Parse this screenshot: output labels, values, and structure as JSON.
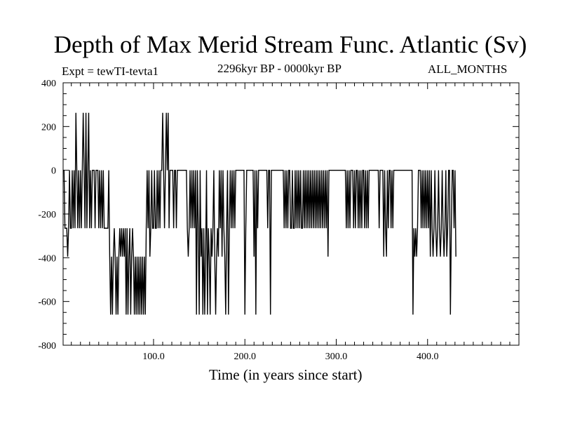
{
  "chart_data": {
    "type": "line",
    "title": "Depth of Max Merid Stream Func. Atlantic (Sv)",
    "subtitle_left": "Expt = tewTI-tevta1",
    "subtitle_center": "2296kyr BP - 0000kyr BP",
    "subtitle_right": "ALL_MONTHS",
    "xlabel": "Time (in years since start)",
    "ylabel": "",
    "xlim": [
      1,
      500
    ],
    "ylim": [
      -800,
      400
    ],
    "xticks": [
      {
        "value": 100,
        "label": "100.0"
      },
      {
        "value": 200,
        "label": "200.0"
      },
      {
        "value": 300,
        "label": "300.0"
      },
      {
        "value": 400,
        "label": "400.0"
      }
    ],
    "yticks": [
      {
        "value": 400,
        "label": "400"
      },
      {
        "value": 200,
        "label": "200"
      },
      {
        "value": 0,
        "label": "0"
      },
      {
        "value": -200,
        "label": "-200"
      },
      {
        "value": -400,
        "label": "-400"
      },
      {
        "value": -600,
        "label": "-600"
      },
      {
        "value": -800,
        "label": "-800"
      }
    ],
    "series": [
      {
        "name": "depth_of_max_streamfunction",
        "x_start": 1,
        "x_step": 1,
        "values": [
          0,
          0,
          -265,
          -265,
          -265,
          -395,
          -265,
          0,
          -265,
          -265,
          0,
          -265,
          0,
          -265,
          263,
          0,
          -265,
          0,
          -265,
          0,
          -265,
          0,
          263,
          0,
          -265,
          263,
          -265,
          0,
          263,
          -265,
          0,
          -265,
          0,
          0,
          0,
          -265,
          0,
          0,
          0,
          -265,
          0,
          -265,
          0,
          -265,
          0,
          -265,
          -265,
          -265,
          -265,
          -265,
          0,
          -395,
          -660,
          -395,
          -660,
          -395,
          -265,
          -395,
          -660,
          -395,
          -660,
          -395,
          -265,
          -395,
          -265,
          -395,
          -265,
          -395,
          -265,
          -660,
          -265,
          -660,
          -395,
          -265,
          -660,
          -395,
          -265,
          -395,
          -660,
          -395,
          -660,
          -395,
          -660,
          -395,
          -660,
          -395,
          -660,
          -395,
          -660,
          -395,
          -660,
          -265,
          0,
          -265,
          0,
          -395,
          -265,
          0,
          -265,
          -265,
          0,
          -265,
          -265,
          0,
          -265,
          0,
          -265,
          0,
          0,
          263,
          0,
          -265,
          0,
          263,
          0,
          263,
          -265,
          0,
          0,
          0,
          0,
          -265,
          0,
          0,
          -265,
          0,
          0,
          0,
          0,
          0,
          0,
          0,
          0,
          0,
          0,
          0,
          -265,
          -395,
          -265,
          0,
          -265,
          0,
          -265,
          0,
          -265,
          0,
          -660,
          0,
          -265,
          -660,
          0,
          -395,
          -265,
          -660,
          -265,
          -660,
          -395,
          0,
          -660,
          -265,
          -395,
          -660,
          -265,
          -395,
          -265,
          0,
          -395,
          -660,
          -395,
          -265,
          -395,
          0,
          -265,
          0,
          -395,
          0,
          -265,
          -395,
          -660,
          -265,
          0,
          -660,
          -265,
          0,
          -265,
          0,
          -265,
          0,
          -265,
          0,
          0,
          0,
          0,
          0,
          0,
          0,
          0,
          0,
          0,
          -660,
          -265,
          0,
          0,
          0,
          0,
          0,
          0,
          0,
          0,
          -395,
          0,
          -660,
          0,
          -265,
          0,
          0,
          0,
          0,
          0,
          0,
          0,
          0,
          0,
          0,
          -265,
          0,
          0,
          -660,
          0,
          0,
          0,
          0,
          0,
          0,
          0,
          0,
          0,
          0,
          0,
          0,
          0,
          0,
          -265,
          0,
          -265,
          0,
          -265,
          0,
          0,
          -265,
          -265,
          0,
          -265,
          -265,
          0,
          -265,
          0,
          -265,
          0,
          -265,
          0,
          -265,
          -265,
          0,
          -265,
          0,
          -265,
          0,
          -265,
          0,
          -265,
          0,
          -265,
          0,
          -265,
          0,
          -265,
          0,
          -265,
          0,
          -265,
          0,
          -265,
          0,
          -265,
          0,
          -265,
          0,
          -265,
          0,
          -395,
          0,
          0,
          0,
          0,
          0,
          0,
          0,
          0,
          0,
          0,
          0,
          0,
          0,
          0,
          0,
          0,
          0,
          0,
          0,
          -265,
          0,
          -265,
          0,
          -265,
          0,
          0,
          0,
          -265,
          0,
          -265,
          0,
          0,
          -265,
          0,
          -265,
          0,
          -265,
          0,
          0,
          -265,
          0,
          -265,
          0,
          -265,
          0,
          0,
          0,
          0,
          0,
          0,
          0,
          0,
          0,
          0,
          0,
          -265,
          0,
          0,
          0,
          0,
          -395,
          0,
          -265,
          -395,
          0,
          -265,
          0,
          0,
          -265,
          0,
          -265,
          0,
          0,
          0,
          0,
          0,
          0,
          0,
          0,
          0,
          0,
          0,
          0,
          0,
          0,
          0,
          0,
          0,
          0,
          0,
          0,
          0,
          -660,
          -265,
          -395,
          -265,
          -395,
          -265,
          0,
          0,
          0,
          -265,
          0,
          -265,
          0,
          -265,
          0,
          -265,
          0,
          -265,
          0,
          -395,
          0,
          -265,
          -395,
          -265,
          0,
          -265,
          -395,
          -265,
          0,
          -265,
          -395,
          -265,
          0,
          -265,
          -395,
          -265,
          0,
          -395,
          -265,
          0,
          0,
          -660,
          -265,
          0,
          0,
          -265,
          0,
          -395
        ]
      }
    ],
    "colors": {
      "background": "#ffffff",
      "line": "#000000",
      "axis": "#000000"
    }
  }
}
